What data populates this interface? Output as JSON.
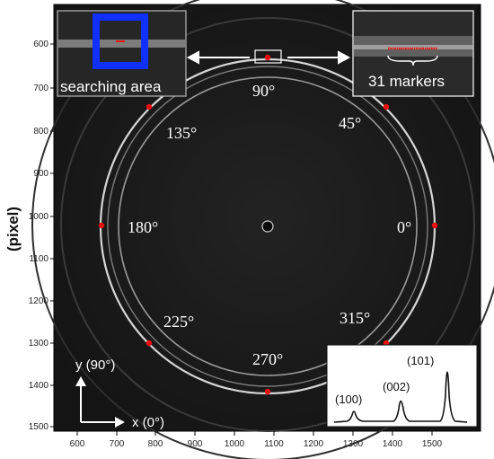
{
  "y_axis_label": "(pixel)",
  "x_ticks": [
    "600",
    "700",
    "800",
    "900",
    "1000",
    "1100",
    "1200",
    "1300",
    "1400",
    "1500"
  ],
  "y_ticks": [
    "600",
    "700",
    "800",
    "900",
    "1000",
    "1100",
    "1200",
    "1300",
    "1400",
    "1500"
  ],
  "angle_labels": {
    "a0": "0°",
    "a45": "45°",
    "a90": "90°",
    "a135": "135°",
    "a180": "180°",
    "a225": "225°",
    "a270": "270°",
    "a315": "315°"
  },
  "left_inset_label": "searching area",
  "right_inset_label": "31 markers",
  "peak_labels": {
    "p100": "(100)",
    "p002": "(002)",
    "p101": "(101)"
  },
  "axis_indicator": {
    "y_label": "y (90°)",
    "x_label": "x (0°)"
  },
  "colors": {
    "marker": "#e81010",
    "search_box": "#1030ff",
    "background": "#151515"
  }
}
